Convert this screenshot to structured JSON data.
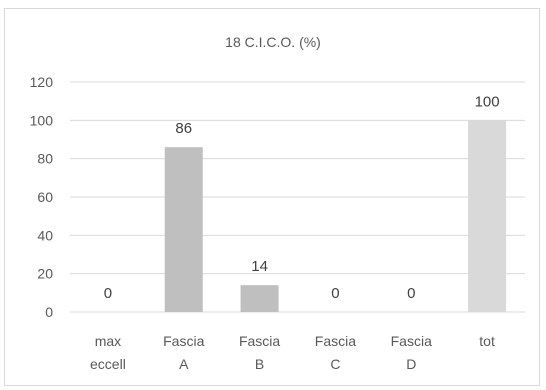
{
  "chart_data": {
    "type": "bar",
    "title": "18 C.I.C.O. (%)",
    "categories": [
      [
        "max",
        "eccell"
      ],
      [
        "Fascia",
        "A"
      ],
      [
        "Fascia",
        "B"
      ],
      [
        "Fascia",
        "C"
      ],
      [
        "Fascia",
        "D"
      ],
      [
        "tot"
      ]
    ],
    "values": [
      0,
      86,
      14,
      0,
      0,
      100
    ],
    "data_labels": [
      "0",
      "86",
      "14",
      "0",
      "0",
      "100"
    ],
    "bar_colors": [
      "#bfbfbf",
      "#bfbfbf",
      "#bfbfbf",
      "#bfbfbf",
      "#bfbfbf",
      "#d9d9d9"
    ],
    "ylim": [
      0,
      120
    ],
    "yticks": [
      0,
      20,
      40,
      60,
      80,
      100,
      120
    ],
    "grid": true,
    "gridline_color": "#d9d9d9",
    "legend": "none"
  }
}
